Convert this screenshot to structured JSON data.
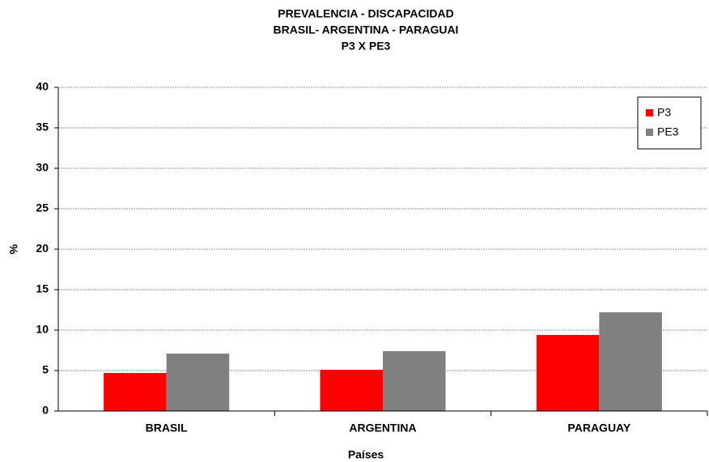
{
  "chart_data": {
    "type": "bar",
    "title": [
      "PREVALENCIA - DISCAPACIDAD",
      "BRASIL- ARGENTINA - PARAGUAI",
      "P3 X PE3"
    ],
    "x_label": "Países",
    "y_label": "%",
    "categories": [
      "BRASIL",
      "ARGENTINA",
      "PARAGUAY"
    ],
    "series": [
      {
        "name": "P3",
        "color": "#ff0000",
        "values": [
          4.7,
          5.1,
          9.4
        ]
      },
      {
        "name": "PE3",
        "color": "#808080",
        "values": [
          7.1,
          7.4,
          12.2
        ]
      }
    ],
    "ylim": [
      0,
      40
    ],
    "yticks": [
      0,
      5,
      10,
      15,
      20,
      25,
      30,
      35,
      40
    ],
    "grid": true,
    "legend": "top-right"
  }
}
